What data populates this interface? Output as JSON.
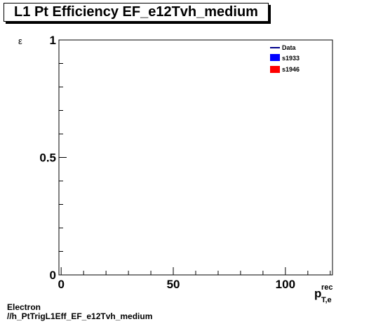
{
  "chart_data": {
    "type": "line",
    "title": "L1 Pt Efficiency EF_e12Tvh_medium",
    "ylabel": "ε",
    "xlabel_main": "p",
    "xlabel_sup": "rec",
    "xlabel_sub": "T,e",
    "xlim": [
      -1,
      121
    ],
    "ylim": [
      0,
      1
    ],
    "x_major_ticks": [
      0,
      50,
      100
    ],
    "x_tick_labels": [
      "0",
      "50",
      "100"
    ],
    "y_major_ticks": [
      0,
      0.5,
      1
    ],
    "y_tick_labels": [
      "0",
      "0.5",
      "1"
    ],
    "legend_position": "top-right",
    "series": [
      {
        "name": "Data",
        "style": "line",
        "color": "#00008b",
        "values": []
      },
      {
        "name": "s1933",
        "style": "fill",
        "color": "#0000ff",
        "values": []
      },
      {
        "name": "s1946",
        "style": "fill",
        "color": "#ff0000",
        "values": []
      }
    ]
  },
  "footer": {
    "line1": "Electron",
    "line2": "//h_PtTrigL1Eff_EF_e12Tvh_medium"
  }
}
